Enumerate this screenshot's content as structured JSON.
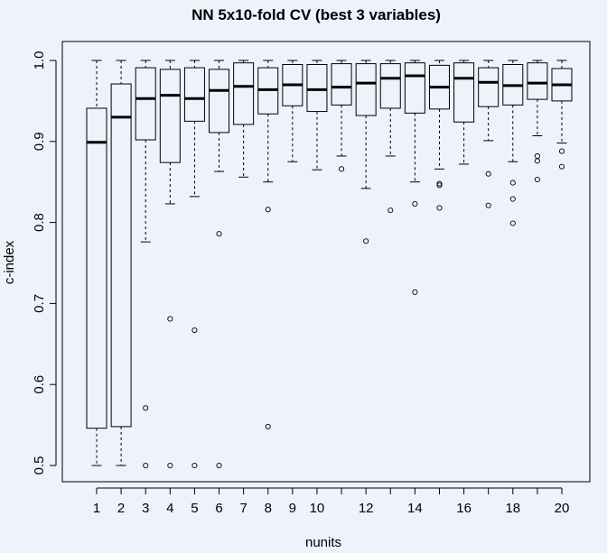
{
  "chart_data": {
    "type": "boxplot",
    "title": "NN 5x10-fold CV (best 3 variables)",
    "xlabel": "nunits",
    "ylabel": "c-index",
    "ylim": [
      0.48,
      1.02
    ],
    "y_ticks": [
      "0.5",
      "0.6",
      "0.7",
      "0.8",
      "0.9",
      "1.0"
    ],
    "y_tick_values": [
      0.5,
      0.6,
      0.7,
      0.8,
      0.9,
      1.0
    ],
    "categories": [
      "1",
      "2",
      "3",
      "4",
      "5",
      "6",
      "7",
      "8",
      "9",
      "10",
      "11",
      "12",
      "13",
      "14",
      "15",
      "16",
      "17",
      "18",
      "19",
      "20"
    ],
    "x_tick_labels_shown": [
      "1",
      "2",
      "3",
      "4",
      "5",
      "6",
      "7",
      "8",
      "9",
      "10",
      "",
      "12",
      "",
      "14",
      "",
      "16",
      "",
      "18",
      "",
      "20"
    ],
    "grid": false,
    "boxes": [
      {
        "x": "1",
        "whisker_low": 0.5,
        "q1": 0.546,
        "median": 0.899,
        "q3": 0.941,
        "whisker_high": 1.0,
        "outliers": []
      },
      {
        "x": "2",
        "whisker_low": 0.5,
        "q1": 0.548,
        "median": 0.93,
        "q3": 0.971,
        "whisker_high": 1.0,
        "outliers": []
      },
      {
        "x": "3",
        "whisker_low": 0.776,
        "q1": 0.902,
        "median": 0.953,
        "q3": 0.991,
        "whisker_high": 1.0,
        "outliers": [
          0.571,
          0.5
        ]
      },
      {
        "x": "4",
        "whisker_low": 0.823,
        "q1": 0.874,
        "median": 0.957,
        "q3": 0.989,
        "whisker_high": 1.0,
        "outliers": [
          0.681,
          0.5
        ]
      },
      {
        "x": "5",
        "whisker_low": 0.832,
        "q1": 0.925,
        "median": 0.953,
        "q3": 0.991,
        "whisker_high": 1.0,
        "outliers": [
          0.667,
          0.5
        ]
      },
      {
        "x": "6",
        "whisker_low": 0.863,
        "q1": 0.911,
        "median": 0.963,
        "q3": 0.989,
        "whisker_high": 1.0,
        "outliers": [
          0.786,
          0.5
        ]
      },
      {
        "x": "7",
        "whisker_low": 0.856,
        "q1": 0.921,
        "median": 0.968,
        "q3": 0.997,
        "whisker_high": 1.0,
        "outliers": []
      },
      {
        "x": "8",
        "whisker_low": 0.85,
        "q1": 0.934,
        "median": 0.964,
        "q3": 0.991,
        "whisker_high": 1.0,
        "outliers": [
          0.816,
          0.548
        ]
      },
      {
        "x": "9",
        "whisker_low": 0.875,
        "q1": 0.944,
        "median": 0.97,
        "q3": 0.995,
        "whisker_high": 1.0,
        "outliers": []
      },
      {
        "x": "10",
        "whisker_low": 0.865,
        "q1": 0.937,
        "median": 0.964,
        "q3": 0.995,
        "whisker_high": 1.0,
        "outliers": []
      },
      {
        "x": "11",
        "whisker_low": 0.882,
        "q1": 0.945,
        "median": 0.967,
        "q3": 0.996,
        "whisker_high": 1.0,
        "outliers": [
          0.866
        ]
      },
      {
        "x": "12",
        "whisker_low": 0.842,
        "q1": 0.932,
        "median": 0.972,
        "q3": 0.996,
        "whisker_high": 1.0,
        "outliers": [
          0.777
        ]
      },
      {
        "x": "13",
        "whisker_low": 0.882,
        "q1": 0.941,
        "median": 0.978,
        "q3": 0.996,
        "whisker_high": 1.0,
        "outliers": [
          0.815
        ]
      },
      {
        "x": "14",
        "whisker_low": 0.85,
        "q1": 0.935,
        "median": 0.981,
        "q3": 0.997,
        "whisker_high": 1.0,
        "outliers": [
          0.823,
          0.714
        ]
      },
      {
        "x": "15",
        "whisker_low": 0.866,
        "q1": 0.94,
        "median": 0.967,
        "q3": 0.994,
        "whisker_high": 1.0,
        "outliers": [
          0.848,
          0.846,
          0.818
        ]
      },
      {
        "x": "16",
        "whisker_low": 0.872,
        "q1": 0.924,
        "median": 0.978,
        "q3": 0.997,
        "whisker_high": 1.0,
        "outliers": []
      },
      {
        "x": "17",
        "whisker_low": 0.901,
        "q1": 0.943,
        "median": 0.973,
        "q3": 0.991,
        "whisker_high": 1.0,
        "outliers": [
          0.86,
          0.821
        ]
      },
      {
        "x": "18",
        "whisker_low": 0.875,
        "q1": 0.945,
        "median": 0.969,
        "q3": 0.995,
        "whisker_high": 1.0,
        "outliers": [
          0.849,
          0.829,
          0.799
        ]
      },
      {
        "x": "19",
        "whisker_low": 0.907,
        "q1": 0.952,
        "median": 0.972,
        "q3": 0.997,
        "whisker_high": 1.0,
        "outliers": [
          0.882,
          0.876,
          0.853
        ]
      },
      {
        "x": "20",
        "whisker_low": 0.898,
        "q1": 0.95,
        "median": 0.97,
        "q3": 0.99,
        "whisker_high": 1.0,
        "outliers": [
          0.888,
          0.869
        ]
      }
    ]
  },
  "colors": {
    "background": "#eef2fb",
    "box_fill": "#eef2fb",
    "stroke": "#000000"
  }
}
